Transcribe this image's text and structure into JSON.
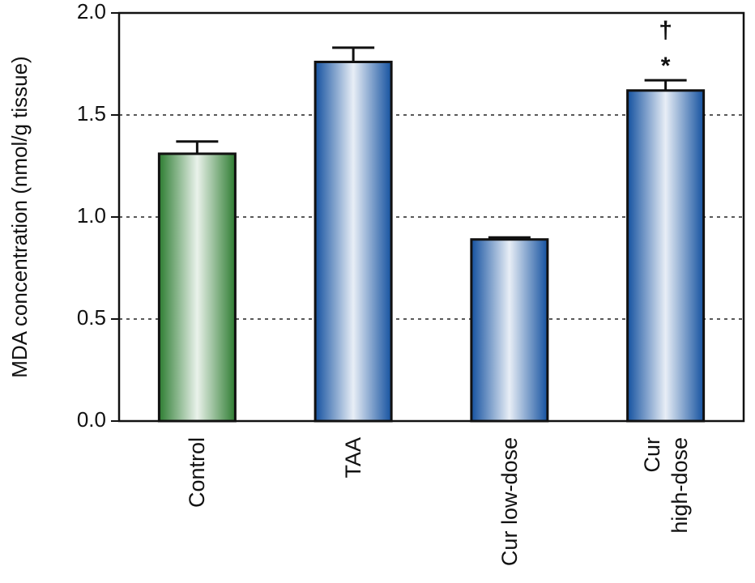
{
  "chart_data": {
    "type": "bar",
    "y_label": "MDA concentration (nmol/g tissue)",
    "categories": [
      "Control",
      "TAA",
      "Cur low-dose",
      "Cur\nhigh-dose"
    ],
    "values": [
      1.31,
      1.76,
      0.89,
      1.62
    ],
    "errors": [
      0.06,
      0.07,
      0.01,
      0.05
    ],
    "colors": [
      "#2e7d32",
      "#1552a0",
      "#1552a0",
      "#1552a0"
    ],
    "annotations": [
      "*",
      "†"
    ],
    "ylim": [
      0,
      2
    ],
    "yticks": [
      {
        "value": 0,
        "label": "0.0"
      },
      {
        "value": 0.5,
        "label": "0.5"
      },
      {
        "value": 1,
        "label": "1.0"
      },
      {
        "value": 1.5,
        "label": "1.5"
      },
      {
        "value": 2,
        "label": "2.0"
      }
    ],
    "grid": true
  }
}
